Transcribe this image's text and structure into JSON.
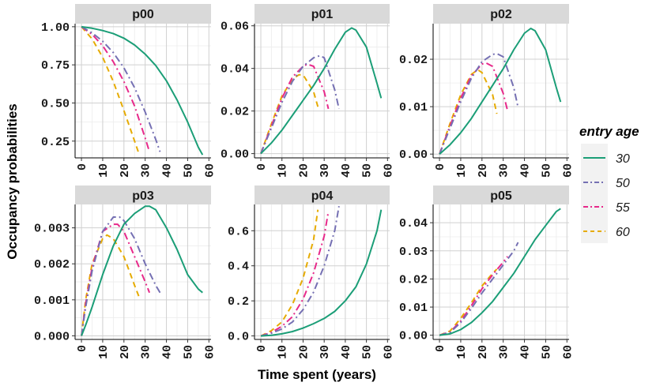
{
  "chart_data": {
    "type": "line",
    "ylabel": "Occupancy probabilities",
    "xlabel": "Time spent (years)",
    "legend": {
      "title": "entry age",
      "entries": [
        {
          "label": "30",
          "color": "#1b9e77",
          "dash": "solid"
        },
        {
          "label": "50",
          "color": "#7570b3",
          "dash": "dashdot"
        },
        {
          "label": "55",
          "color": "#e7298a",
          "dash": "dashdot"
        },
        {
          "label": "60",
          "color": "#e6ab02",
          "dash": "dashed"
        }
      ]
    },
    "panels": [
      {
        "title": "p00",
        "xlim": [
          -3,
          61
        ],
        "ylim": [
          0.14,
          1.02
        ],
        "xticks": [
          "0",
          "10",
          "20",
          "30",
          "40",
          "50",
          "60"
        ],
        "yticks": [
          {
            "v": 0.25,
            "label": "0.25"
          },
          {
            "v": 0.5,
            "label": "0.50"
          },
          {
            "v": 0.75,
            "label": "0.75"
          },
          {
            "v": 1.0,
            "label": "1.00"
          }
        ],
        "series": [
          {
            "name": "30",
            "x": [
              0,
              5,
              10,
              15,
              20,
              25,
              30,
              35,
              40,
              45,
              50,
              55,
              57
            ],
            "y": [
              1.0,
              0.99,
              0.975,
              0.955,
              0.925,
              0.88,
              0.82,
              0.745,
              0.645,
              0.52,
              0.375,
              0.21,
              0.16
            ]
          },
          {
            "name": "50",
            "x": [
              0,
              5,
              10,
              15,
              20,
              25,
              30,
              35,
              37
            ],
            "y": [
              1.0,
              0.96,
              0.905,
              0.83,
              0.73,
              0.6,
              0.44,
              0.26,
              0.18
            ]
          },
          {
            "name": "55",
            "x": [
              0,
              5,
              10,
              15,
              20,
              25,
              30,
              32
            ],
            "y": [
              1.0,
              0.95,
              0.875,
              0.77,
              0.64,
              0.48,
              0.27,
              0.18
            ]
          },
          {
            "name": "60",
            "x": [
              0,
              5,
              10,
              15,
              20,
              25,
              27
            ],
            "y": [
              1.0,
              0.92,
              0.8,
              0.64,
              0.45,
              0.25,
              0.17
            ]
          }
        ]
      },
      {
        "title": "p01",
        "xlim": [
          -3,
          61
        ],
        "ylim": [
          -0.002,
          0.061
        ],
        "xticks": [
          "0",
          "10",
          "20",
          "30",
          "40",
          "50",
          "60"
        ],
        "yticks": [
          {
            "v": 0.0,
            "label": "0.00"
          },
          {
            "v": 0.02,
            "label": "0.02"
          },
          {
            "v": 0.04,
            "label": "0.04"
          },
          {
            "v": 0.06,
            "label": "0.06"
          }
        ],
        "series": [
          {
            "name": "30",
            "x": [
              0,
              5,
              10,
              15,
              20,
              25,
              30,
              35,
              40,
              43,
              45,
              50,
              55,
              57
            ],
            "y": [
              0.0,
              0.005,
              0.011,
              0.018,
              0.025,
              0.032,
              0.04,
              0.049,
              0.057,
              0.059,
              0.058,
              0.05,
              0.033,
              0.026
            ]
          },
          {
            "name": "50",
            "x": [
              0,
              5,
              10,
              15,
              20,
              25,
              28,
              30,
              35,
              37
            ],
            "y": [
              0.0,
              0.012,
              0.024,
              0.034,
              0.041,
              0.045,
              0.046,
              0.045,
              0.03,
              0.021
            ]
          },
          {
            "name": "55",
            "x": [
              0,
              5,
              10,
              15,
              20,
              22,
              25,
              30,
              32
            ],
            "y": [
              0.0,
              0.013,
              0.026,
              0.036,
              0.041,
              0.042,
              0.041,
              0.029,
              0.021
            ]
          },
          {
            "name": "60",
            "x": [
              0,
              5,
              10,
              15,
              18,
              20,
              25,
              27
            ],
            "y": [
              0.0,
              0.014,
              0.027,
              0.035,
              0.037,
              0.037,
              0.029,
              0.022
            ]
          }
        ]
      },
      {
        "title": "p02",
        "xlim": [
          -3,
          61
        ],
        "ylim": [
          -0.0008,
          0.0275
        ],
        "xticks": [
          "0",
          "10",
          "20",
          "30",
          "40",
          "50",
          "60"
        ],
        "yticks": [
          {
            "v": 0.0,
            "label": "0.00"
          },
          {
            "v": 0.01,
            "label": "0.01"
          },
          {
            "v": 0.02,
            "label": "0.02"
          }
        ],
        "series": [
          {
            "name": "30",
            "x": [
              0,
              5,
              10,
              15,
              20,
              25,
              30,
              35,
              40,
              43,
              45,
              50,
              55,
              57
            ],
            "y": [
              0.0,
              0.002,
              0.0045,
              0.0075,
              0.011,
              0.0145,
              0.018,
              0.022,
              0.0255,
              0.0265,
              0.026,
              0.022,
              0.014,
              0.011
            ]
          },
          {
            "name": "50",
            "x": [
              0,
              5,
              10,
              15,
              20,
              25,
              27,
              30,
              35,
              37
            ],
            "y": [
              0.0,
              0.0055,
              0.011,
              0.016,
              0.0195,
              0.021,
              0.0212,
              0.0205,
              0.014,
              0.0098
            ]
          },
          {
            "name": "55",
            "x": [
              0,
              5,
              10,
              15,
              20,
              22,
              25,
              30,
              32
            ],
            "y": [
              0.0,
              0.006,
              0.0118,
              0.0165,
              0.019,
              0.0192,
              0.0185,
              0.0128,
              0.0092
            ]
          },
          {
            "name": "60",
            "x": [
              0,
              5,
              10,
              15,
              18,
              20,
              25,
              27
            ],
            "y": [
              0.0,
              0.0065,
              0.0125,
              0.0168,
              0.0178,
              0.0172,
              0.0125,
              0.0085
            ]
          }
        ]
      },
      {
        "title": "p03",
        "xlim": [
          -3,
          61
        ],
        "ylim": [
          -0.0001,
          0.00365
        ],
        "xticks": [
          "0",
          "10",
          "20",
          "30",
          "40",
          "50",
          "60"
        ],
        "yticks": [
          {
            "v": 0.0,
            "label": "0.000"
          },
          {
            "v": 0.001,
            "label": "0.001"
          },
          {
            "v": 0.002,
            "label": "0.002"
          },
          {
            "v": 0.003,
            "label": "0.003"
          }
        ],
        "series": [
          {
            "name": "30",
            "x": [
              0,
              2,
              5,
              10,
              15,
              20,
              25,
              30,
              32,
              35,
              40,
              45,
              50,
              55,
              57
            ],
            "y": [
              0.0,
              0.0003,
              0.0008,
              0.0017,
              0.0025,
              0.0031,
              0.0034,
              0.0036,
              0.0036,
              0.0035,
              0.003,
              0.0024,
              0.0017,
              0.0013,
              0.0012
            ]
          },
          {
            "name": "50",
            "x": [
              0,
              2,
              5,
              10,
              15,
              18,
              20,
              25,
              30,
              35,
              37
            ],
            "y": [
              0.0,
              0.0008,
              0.0018,
              0.0029,
              0.0033,
              0.0033,
              0.0032,
              0.0027,
              0.002,
              0.0014,
              0.0012
            ]
          },
          {
            "name": "55",
            "x": [
              0,
              2,
              5,
              10,
              15,
              17,
              20,
              25,
              30,
              32
            ],
            "y": [
              0.0,
              0.0009,
              0.0019,
              0.0029,
              0.0031,
              0.0031,
              0.0029,
              0.0022,
              0.0015,
              0.0012
            ]
          },
          {
            "name": "60",
            "x": [
              0,
              2,
              5,
              10,
              12,
              15,
              20,
              25,
              27
            ],
            "y": [
              0.0,
              0.001,
              0.002,
              0.0027,
              0.0028,
              0.0027,
              0.0022,
              0.0014,
              0.0011
            ]
          }
        ]
      },
      {
        "title": "p04",
        "xlim": [
          -3,
          61
        ],
        "ylim": [
          -0.02,
          0.75
        ],
        "xticks": [
          "0",
          "10",
          "20",
          "30",
          "40",
          "50",
          "60"
        ],
        "yticks": [
          {
            "v": 0.0,
            "label": "0.0"
          },
          {
            "v": 0.2,
            "label": "0.2"
          },
          {
            "v": 0.4,
            "label": "0.4"
          },
          {
            "v": 0.6,
            "label": "0.6"
          }
        ],
        "series": [
          {
            "name": "30",
            "x": [
              0,
              5,
              10,
              15,
              20,
              25,
              30,
              35,
              40,
              45,
              50,
              55,
              57
            ],
            "y": [
              0.0,
              0.004,
              0.012,
              0.025,
              0.045,
              0.07,
              0.1,
              0.14,
              0.2,
              0.28,
              0.41,
              0.6,
              0.72
            ]
          },
          {
            "name": "50",
            "x": [
              0,
              5,
              10,
              15,
              20,
              25,
              30,
              35,
              37
            ],
            "y": [
              0.0,
              0.015,
              0.04,
              0.08,
              0.15,
              0.25,
              0.4,
              0.6,
              0.74
            ]
          },
          {
            "name": "55",
            "x": [
              0,
              5,
              10,
              15,
              20,
              25,
              30,
              32
            ],
            "y": [
              0.0,
              0.02,
              0.055,
              0.11,
              0.21,
              0.36,
              0.57,
              0.71
            ]
          },
          {
            "name": "60",
            "x": [
              0,
              5,
              10,
              15,
              20,
              25,
              27
            ],
            "y": [
              0.0,
              0.03,
              0.08,
              0.18,
              0.33,
              0.55,
              0.72
            ]
          }
        ]
      },
      {
        "title": "p05",
        "xlim": [
          -3,
          61
        ],
        "ylim": [
          -0.0015,
          0.0465
        ],
        "xticks": [
          "0",
          "10",
          "20",
          "30",
          "40",
          "50",
          "60"
        ],
        "yticks": [
          {
            "v": 0.0,
            "label": "0.00"
          },
          {
            "v": 0.01,
            "label": "0.01"
          },
          {
            "v": 0.02,
            "label": "0.02"
          },
          {
            "v": 0.03,
            "label": "0.03"
          },
          {
            "v": 0.04,
            "label": "0.04"
          }
        ],
        "series": [
          {
            "name": "30",
            "x": [
              0,
              5,
              10,
              15,
              20,
              25,
              30,
              35,
              40,
              45,
              50,
              55,
              57
            ],
            "y": [
              0.0,
              0.0005,
              0.002,
              0.0045,
              0.008,
              0.012,
              0.017,
              0.022,
              0.028,
              0.034,
              0.039,
              0.044,
              0.045
            ]
          },
          {
            "name": "50",
            "x": [
              0,
              5,
              10,
              15,
              20,
              25,
              30,
              35,
              37
            ],
            "y": [
              0.0,
              0.001,
              0.0045,
              0.0095,
              0.015,
              0.02,
              0.025,
              0.03,
              0.033
            ]
          },
          {
            "name": "55",
            "x": [
              0,
              5,
              10,
              15,
              20,
              25,
              30,
              32
            ],
            "y": [
              0.0,
              0.0012,
              0.005,
              0.0105,
              0.0165,
              0.0215,
              0.026,
              0.028
            ]
          },
          {
            "name": "60",
            "x": [
              0,
              5,
              10,
              15,
              20,
              25,
              27
            ],
            "y": [
              0.0,
              0.0015,
              0.006,
              0.0115,
              0.0175,
              0.022,
              0.0235
            ]
          }
        ]
      }
    ]
  }
}
